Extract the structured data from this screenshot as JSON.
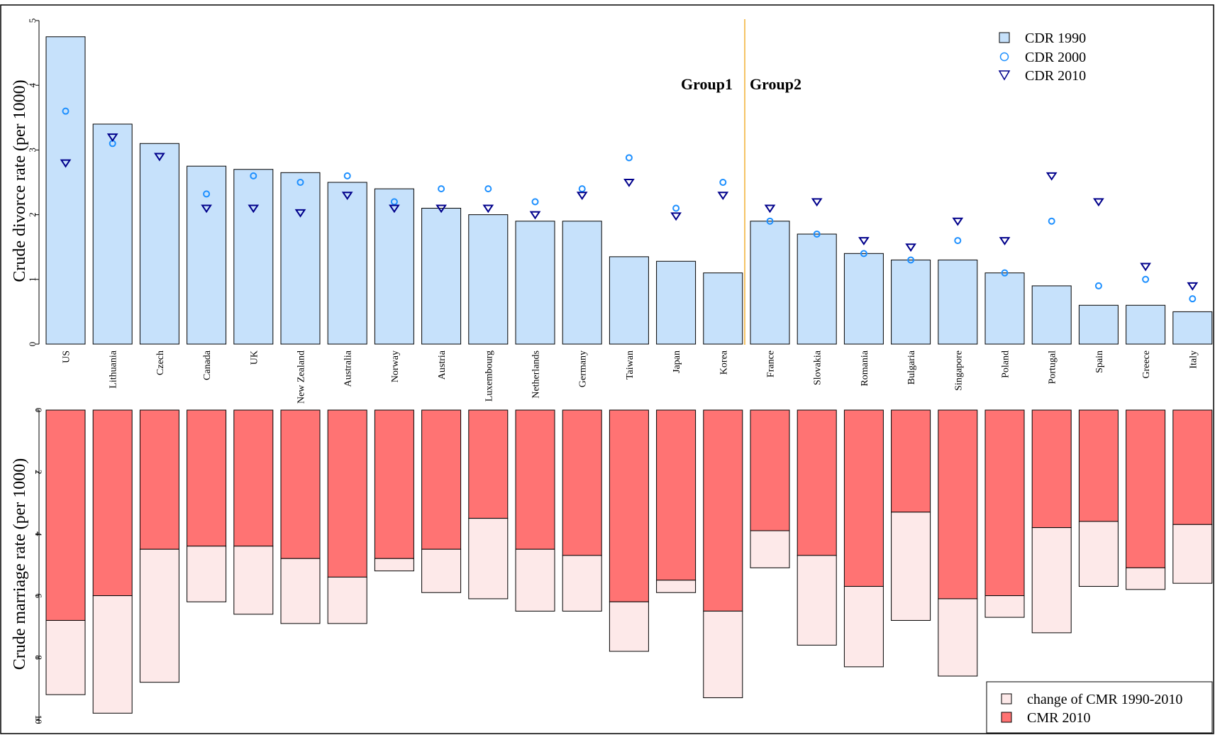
{
  "chart_data": [
    {
      "type": "bar",
      "panel": "top",
      "ylabel": "Crude divorce rate (per 1000)",
      "ylim": [
        0,
        5
      ],
      "yticks": [
        0,
        1,
        2,
        3,
        4,
        5
      ],
      "categories": [
        "US",
        "Lithuania",
        "Czech",
        "Canada",
        "UK",
        "New Zealand",
        "Australia",
        "Norway",
        "Austria",
        "Luxembourg",
        "Netherlands",
        "Germany",
        "Taiwan",
        "Japan",
        "Korea",
        "France",
        "Slovakia",
        "Romania",
        "Bulgaria",
        "Singapore",
        "Poland",
        "Portugal",
        "Spain",
        "Greece",
        "Italy"
      ],
      "series": [
        {
          "name": "CDR 1990",
          "kind": "bar",
          "color": "#c6e1fb",
          "values": [
            4.75,
            3.4,
            3.1,
            2.75,
            2.7,
            2.65,
            2.5,
            2.4,
            2.1,
            2.0,
            1.9,
            1.9,
            1.35,
            1.28,
            1.1,
            1.9,
            1.7,
            1.4,
            1.3,
            1.3,
            1.1,
            0.9,
            0.6,
            0.6,
            0.5
          ]
        },
        {
          "name": "CDR 2000",
          "kind": "circle",
          "color": "#1e90ff",
          "values": [
            3.6,
            3.1,
            null,
            2.32,
            2.6,
            2.5,
            2.6,
            2.2,
            2.4,
            2.4,
            2.2,
            2.4,
            2.88,
            2.1,
            2.5,
            1.9,
            1.7,
            1.4,
            1.3,
            1.6,
            1.1,
            1.9,
            0.9,
            1.0,
            0.7
          ]
        },
        {
          "name": "CDR 2010",
          "kind": "triangle",
          "color": "#00008b",
          "values": [
            2.8,
            3.2,
            2.9,
            2.1,
            2.1,
            2.03,
            2.3,
            2.1,
            2.1,
            2.1,
            2.0,
            2.3,
            2.5,
            1.98,
            2.3,
            2.1,
            2.2,
            1.6,
            1.5,
            1.9,
            1.6,
            2.6,
            2.2,
            1.2,
            0.9
          ]
        }
      ],
      "annotations": [
        "Group1",
        "Group2"
      ],
      "legend_position": "top-right"
    },
    {
      "type": "bar",
      "panel": "bottom",
      "ylabel": "Crude marriage rate (per 1000)",
      "ylim": [
        0,
        10
      ],
      "yticks": [
        0,
        2,
        4,
        6,
        8,
        10
      ],
      "inverted": true,
      "categories": [
        "US",
        "Lithuania",
        "Czech",
        "Canada",
        "UK",
        "New Zealand",
        "Australia",
        "Norway",
        "Austria",
        "Luxembourg",
        "Netherlands",
        "Germany",
        "Taiwan",
        "Japan",
        "Korea",
        "France",
        "Slovakia",
        "Romania",
        "Bulgaria",
        "Singapore",
        "Poland",
        "Portugal",
        "Spain",
        "Greece",
        "Italy"
      ],
      "series": [
        {
          "name": "CMR 2010",
          "color": "#ff7373",
          "values": [
            6.8,
            6.0,
            4.5,
            4.4,
            4.4,
            4.8,
            5.4,
            4.8,
            4.5,
            3.5,
            4.5,
            4.7,
            6.2,
            5.5,
            6.5,
            3.9,
            4.7,
            5.7,
            3.3,
            6.1,
            6.0,
            3.8,
            3.6,
            5.1,
            3.7
          ]
        },
        {
          "name": "change of CMR 1990-2010",
          "color": "#fde9e9",
          "values": [
            2.4,
            3.8,
            4.3,
            1.8,
            2.2,
            2.1,
            1.5,
            0.4,
            1.4,
            2.6,
            2.0,
            1.8,
            1.6,
            0.4,
            2.8,
            1.2,
            2.9,
            2.6,
            3.5,
            2.5,
            0.7,
            3.4,
            2.1,
            0.7,
            1.9
          ]
        }
      ],
      "legend_position": "bottom-right"
    }
  ]
}
